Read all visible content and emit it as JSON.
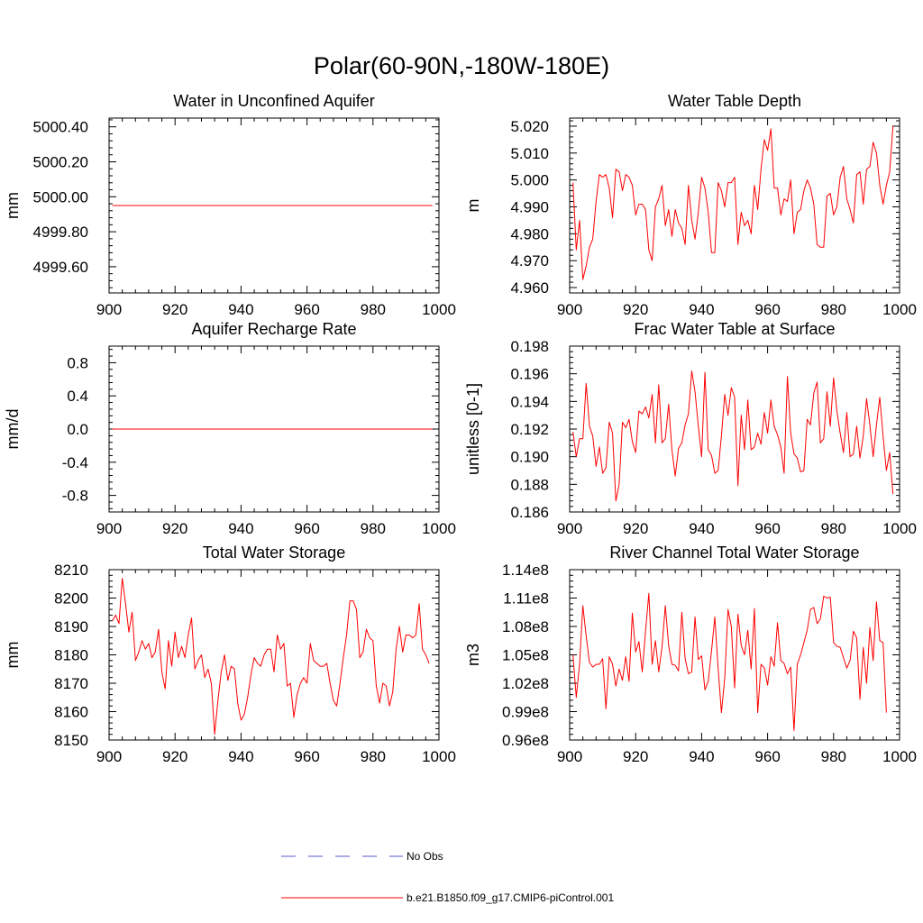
{
  "figure_title": "Polar(60-90N,-180W-180E)",
  "colors": {
    "model": "#ff0000",
    "obs": "#5a5ad0",
    "axis": "#000000"
  },
  "legend": [
    {
      "label": "No Obs",
      "style": "dashed",
      "color": "#5a5ad0"
    },
    {
      "label": "b.e21.B1850.f09_g17.CMIP6-piControl.001",
      "style": "solid",
      "color": "#ff0000"
    }
  ],
  "chart_data": [
    {
      "type": "line",
      "title": "Water in Unconfined Aquifer",
      "ylabel": "mm",
      "xlabel": "",
      "xlim": [
        900,
        1000
      ],
      "ylim": [
        4999.45,
        5000.45
      ],
      "xticks": [
        "900",
        "920",
        "940",
        "960",
        "980",
        "1000"
      ],
      "xtick_values": [
        900,
        920,
        940,
        960,
        980,
        1000
      ],
      "yticks": [
        "4999.60",
        "4999.80",
        "5000.00",
        "5000.20",
        "5000.40"
      ],
      "ytick_values": [
        4999.6,
        4999.8,
        5000.0,
        5000.2,
        5000.4
      ],
      "x_start": 901,
      "series": [
        {
          "name": "b.e21.B1850.f09_g17.CMIP6-piControl.001",
          "values": [
            4999.95,
            4999.95,
            4999.95,
            4999.95,
            4999.95,
            4999.95,
            4999.95,
            4999.95,
            4999.95,
            4999.95,
            4999.95,
            4999.95,
            4999.95,
            4999.95,
            4999.95,
            4999.95,
            4999.95,
            4999.95,
            4999.95,
            4999.95,
            4999.95,
            4999.95,
            4999.95,
            4999.95,
            4999.95,
            4999.95,
            4999.95,
            4999.95,
            4999.95,
            4999.95,
            4999.95,
            4999.95,
            4999.95,
            4999.95,
            4999.95,
            4999.95,
            4999.95,
            4999.95,
            4999.95,
            4999.95,
            4999.95,
            4999.95,
            4999.95,
            4999.95,
            4999.95,
            4999.95,
            4999.95,
            4999.95,
            4999.95,
            4999.95,
            4999.95,
            4999.95,
            4999.95,
            4999.95,
            4999.95,
            4999.95,
            4999.95,
            4999.95,
            4999.95,
            4999.95,
            4999.95,
            4999.95,
            4999.95,
            4999.95,
            4999.95,
            4999.95,
            4999.95,
            4999.95,
            4999.95,
            4999.95,
            4999.95,
            4999.95,
            4999.95,
            4999.95,
            4999.95,
            4999.95,
            4999.95,
            4999.95,
            4999.95,
            4999.95,
            4999.95,
            4999.95,
            4999.95,
            4999.95,
            4999.95,
            4999.95,
            4999.95,
            4999.95,
            4999.95,
            4999.95,
            4999.95,
            4999.95,
            4999.95,
            4999.95,
            4999.95,
            4999.95,
            4999.95,
            4999.95
          ]
        }
      ]
    },
    {
      "type": "line",
      "title": "Water Table Depth",
      "ylabel": "m",
      "xlabel": "",
      "xlim": [
        900,
        1000
      ],
      "ylim": [
        4.958,
        5.023
      ],
      "xticks": [
        "900",
        "920",
        "940",
        "960",
        "980",
        "1000"
      ],
      "xtick_values": [
        900,
        920,
        940,
        960,
        980,
        1000
      ],
      "yticks": [
        "4.960",
        "4.970",
        "4.980",
        "4.990",
        "5.000",
        "5.010",
        "5.020"
      ],
      "ytick_values": [
        4.96,
        4.97,
        4.98,
        4.99,
        5.0,
        5.01,
        5.02
      ],
      "x_start": 901,
      "series": [
        {
          "name": "b.e21.B1850.f09_g17.CMIP6-piControl.001",
          "values": [
            4.999,
            4.974,
            4.985,
            4.963,
            4.968,
            4.975,
            4.978,
            4.992,
            5.002,
            5.001,
            5.002,
            4.997,
            4.986,
            5.004,
            5.003,
            4.996,
            5.002,
            5.001,
            4.998,
            4.987,
            4.991,
            4.991,
            4.989,
            4.974,
            4.97,
            4.99,
            4.993,
            4.998,
            4.983,
            4.989,
            4.979,
            4.989,
            4.984,
            4.982,
            4.976,
            4.998,
            4.985,
            4.978,
            4.988,
            5.001,
            4.997,
            4.988,
            4.973,
            4.973,
            4.999,
            4.996,
            4.99,
            4.999,
            4.999,
            5.001,
            4.976,
            4.988,
            4.983,
            4.985,
            4.98,
            4.998,
            4.989,
            5.004,
            5.015,
            5.011,
            5.019,
            4.997,
            4.997,
            4.987,
            4.993,
            4.992,
            5.0,
            4.98,
            4.988,
            4.989,
            4.996,
            5.0,
            4.997,
            4.991,
            4.976,
            4.975,
            4.975,
            4.994,
            4.995,
            4.987,
            4.99,
            5.001,
            5.005,
            4.993,
            4.989,
            4.984,
            5.002,
            5.003,
            4.991,
            5.004,
            5.005,
            5.014,
            5.01,
            4.998,
            4.991,
            4.998,
            5.003,
            5.02
          ]
        }
      ]
    },
    {
      "type": "line",
      "title": "Aquifer Recharge Rate",
      "ylabel": "mm/d",
      "xlabel": "",
      "xlim": [
        900,
        1000
      ],
      "ylim": [
        -1.0,
        1.0
      ],
      "xticks": [
        "900",
        "920",
        "940",
        "960",
        "980",
        "1000"
      ],
      "xtick_values": [
        900,
        920,
        940,
        960,
        980,
        1000
      ],
      "yticks": [
        "-0.8",
        "-0.4",
        "0.0",
        "0.4",
        "0.8"
      ],
      "ytick_values": [
        -0.8,
        -0.4,
        0.0,
        0.4,
        0.8
      ],
      "x_start": 901,
      "series": [
        {
          "name": "b.e21.B1850.f09_g17.CMIP6-piControl.001",
          "values": [
            0,
            0,
            0,
            0,
            0,
            0,
            0,
            0,
            0,
            0,
            0,
            0,
            0,
            0,
            0,
            0,
            0,
            0,
            0,
            0,
            0,
            0,
            0,
            0,
            0,
            0,
            0,
            0,
            0,
            0,
            0,
            0,
            0,
            0,
            0,
            0,
            0,
            0,
            0,
            0,
            0,
            0,
            0,
            0,
            0,
            0,
            0,
            0,
            0,
            0,
            0,
            0,
            0,
            0,
            0,
            0,
            0,
            0,
            0,
            0,
            0,
            0,
            0,
            0,
            0,
            0,
            0,
            0,
            0,
            0,
            0,
            0,
            0,
            0,
            0,
            0,
            0,
            0,
            0,
            0,
            0,
            0,
            0,
            0,
            0,
            0,
            0,
            0,
            0,
            0,
            0,
            0,
            0,
            0,
            0,
            0,
            0,
            0
          ]
        }
      ]
    },
    {
      "type": "line",
      "title": "Frac Water Table at Surface",
      "ylabel": "unitless [0-1]",
      "xlabel": "",
      "xlim": [
        900,
        1000
      ],
      "ylim": [
        0.186,
        0.198
      ],
      "xticks": [
        "900",
        "920",
        "940",
        "960",
        "980",
        "1000"
      ],
      "xtick_values": [
        900,
        920,
        940,
        960,
        980,
        1000
      ],
      "yticks": [
        "0.186",
        "0.188",
        "0.190",
        "0.192",
        "0.194",
        "0.196",
        "0.198"
      ],
      "ytick_values": [
        0.186,
        0.188,
        0.19,
        0.192,
        0.194,
        0.196,
        0.198
      ],
      "x_start": 901,
      "series": [
        {
          "name": "b.e21.B1850.f09_g17.CMIP6-piControl.001",
          "values": [
            0.1918,
            0.19,
            0.1913,
            0.1913,
            0.1953,
            0.1922,
            0.1915,
            0.1893,
            0.1907,
            0.1888,
            0.1892,
            0.1925,
            0.1917,
            0.1868,
            0.188,
            0.1925,
            0.1921,
            0.1927,
            0.1911,
            0.1903,
            0.1933,
            0.1931,
            0.1936,
            0.1928,
            0.1945,
            0.191,
            0.1952,
            0.191,
            0.1913,
            0.1938,
            0.1905,
            0.1886,
            0.1906,
            0.191,
            0.1923,
            0.1931,
            0.1962,
            0.1947,
            0.1922,
            0.19,
            0.1961,
            0.1905,
            0.1901,
            0.1888,
            0.189,
            0.1915,
            0.1945,
            0.193,
            0.195,
            0.1943,
            0.1879,
            0.193,
            0.1905,
            0.1941,
            0.1905,
            0.1907,
            0.1917,
            0.1909,
            0.1932,
            0.1917,
            0.1941,
            0.1922,
            0.1916,
            0.1907,
            0.1888,
            0.1958,
            0.1917,
            0.1902,
            0.1899,
            0.1889,
            0.189,
            0.1927,
            0.1923,
            0.1946,
            0.1954,
            0.191,
            0.1913,
            0.1947,
            0.1922,
            0.1957,
            0.1933,
            0.1917,
            0.1903,
            0.1932,
            0.19,
            0.1902,
            0.1922,
            0.1899,
            0.1915,
            0.1942,
            0.1923,
            0.19,
            0.1923,
            0.1943,
            0.1915,
            0.189,
            0.1903,
            0.1873
          ]
        }
      ]
    },
    {
      "type": "line",
      "title": "Total Water Storage",
      "ylabel": "mm",
      "xlabel": "",
      "xlim": [
        900,
        1000
      ],
      "ylim": [
        8150,
        8210
      ],
      "xticks": [
        "900",
        "920",
        "940",
        "960",
        "980",
        "1000"
      ],
      "xtick_values": [
        900,
        920,
        940,
        960,
        980,
        1000
      ],
      "yticks": [
        "8150",
        "8160",
        "8170",
        "8180",
        "8190",
        "8200",
        "8210"
      ],
      "ytick_values": [
        8150,
        8160,
        8170,
        8180,
        8190,
        8200,
        8210
      ],
      "x_start": 901,
      "series": [
        {
          "name": "b.e21.B1850.f09_g17.CMIP6-piControl.001",
          "values": [
            8192,
            8194,
            8191,
            8207,
            8198,
            8188,
            8195,
            8178,
            8181,
            8185,
            8182,
            8184,
            8179,
            8181,
            8189,
            8174,
            8168,
            8185,
            8176,
            8188,
            8179,
            8183,
            8179,
            8187,
            8193,
            8175,
            8178,
            8180,
            8172,
            8175,
            8170,
            8152,
            8164,
            8174,
            8180,
            8171,
            8176,
            8175,
            8163,
            8157,
            8159,
            8165,
            8173,
            8179,
            8177,
            8176,
            8180,
            8182,
            8182,
            8174,
            8187,
            8182,
            8184,
            8169,
            8170,
            8158,
            8166,
            8170,
            8172,
            8170,
            8184,
            8178,
            8177,
            8176,
            8176,
            8177,
            8170,
            8164,
            8162,
            8170,
            8179,
            8187,
            8199,
            8199,
            8196,
            8179,
            8181,
            8189,
            8186,
            8185,
            8169,
            8163,
            8170,
            8169,
            8162,
            8167,
            8182,
            8190,
            8181,
            8187,
            8187,
            8186,
            8187,
            8198,
            8182,
            8180,
            8177
          ]
        }
      ]
    },
    {
      "type": "line",
      "title": "River Channel Total Water Storage",
      "ylabel": "m3",
      "xlabel": "",
      "xlim": [
        900,
        1000
      ],
      "ylim": [
        96000000,
        114000000
      ],
      "xticks": [
        "900",
        "920",
        "940",
        "960",
        "980",
        "1000"
      ],
      "xtick_values": [
        900,
        920,
        940,
        960,
        980,
        1000
      ],
      "yticks": [
        "0.96e8",
        "0.99e8",
        "1.02e8",
        "1.05e8",
        "1.08e8",
        "1.11e8",
        "1.14e8"
      ],
      "ytick_values": [
        96000000,
        99000000,
        102000000,
        105000000,
        108000000,
        111000000,
        114000000
      ],
      "x_start": 901,
      "series": [
        {
          "name": "b.e21.B1850.f09_g17.CMIP6-piControl.001",
          "values": [
            105000000,
            100500000,
            104000000,
            110200000,
            107000000,
            104200000,
            103700000,
            104000000,
            104000000,
            104600000,
            99300000,
            104800000,
            104000000,
            101700000,
            103500000,
            102300000,
            104800000,
            102200000,
            109400000,
            105300000,
            106400000,
            103200000,
            107500000,
            111500000,
            104000000,
            106500000,
            103200000,
            105800000,
            110200000,
            106000000,
            104000000,
            103900000,
            103300000,
            109500000,
            104600000,
            103000000,
            103200000,
            109000000,
            104500000,
            104900000,
            101300000,
            102200000,
            105400000,
            109000000,
            103600000,
            98900000,
            102500000,
            109800000,
            108000000,
            101500000,
            109300000,
            106000000,
            105000000,
            107600000,
            103500000,
            109900000,
            98900000,
            104000000,
            103600000,
            101800000,
            104800000,
            103800000,
            108400000,
            104400000,
            104100000,
            103000000,
            103700000,
            97000000,
            104000000,
            105000000,
            106300000,
            107600000,
            109800000,
            110000000,
            108300000,
            108800000,
            111200000,
            111000000,
            111100000,
            106300000,
            105900000,
            105800000,
            104700000,
            103600000,
            104400000,
            107500000,
            106800000,
            100300000,
            105800000,
            102000000,
            107900000,
            104400000,
            110600000,
            106500000,
            106300000,
            98900000
          ]
        }
      ]
    }
  ]
}
